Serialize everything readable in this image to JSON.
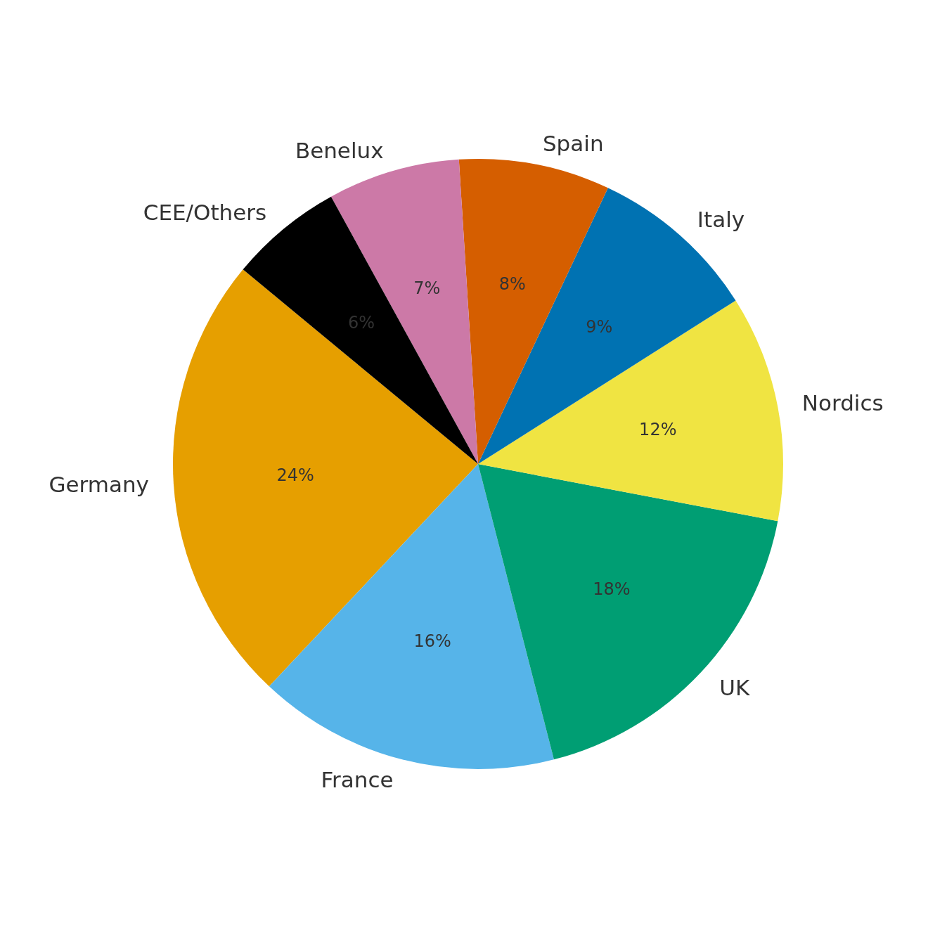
{
  "chart_data": {
    "type": "pie",
    "categories": [
      "Germany",
      "France",
      "UK",
      "Nordics",
      "Italy",
      "Spain",
      "Benelux",
      "CEE/Others"
    ],
    "values": [
      24,
      16,
      18,
      12,
      9,
      8,
      7,
      6
    ],
    "colors": [
      "#e69f00",
      "#56b4e9",
      "#009e73",
      "#f0e442",
      "#0072b2",
      "#d55e00",
      "#cc79a7",
      "#000000"
    ],
    "value_labels": [
      "24%",
      "16%",
      "18%",
      "12%",
      "9%",
      "8%",
      "7%",
      "6%"
    ]
  }
}
